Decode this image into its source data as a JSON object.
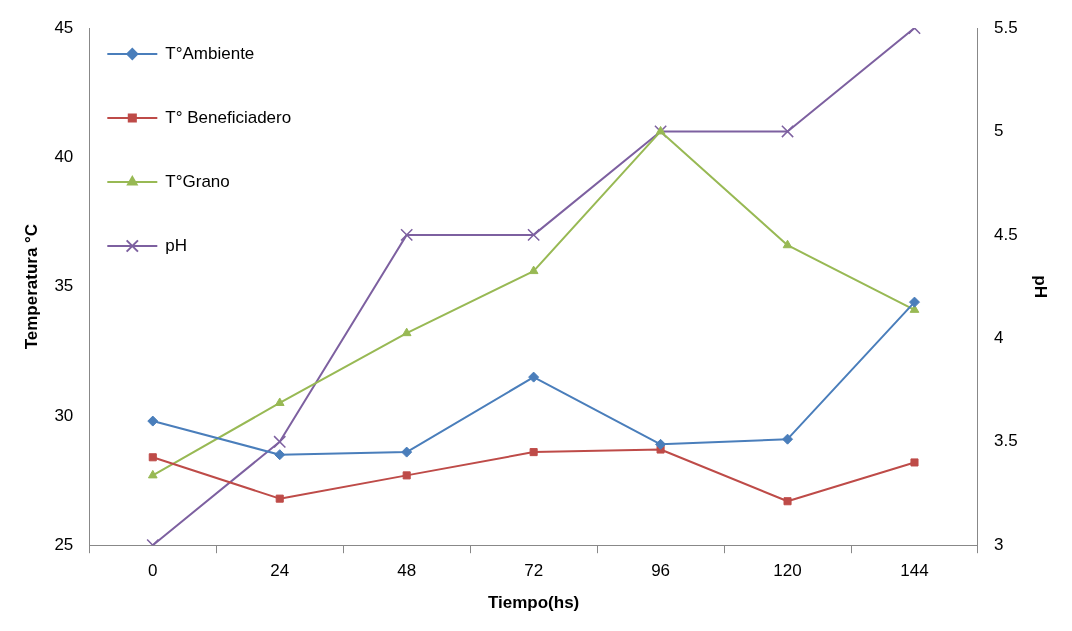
{
  "chart_data": {
    "type": "line",
    "xlabel": "Tiempo(hs)",
    "ylabel": "Temperatura °C",
    "y2label": "pH",
    "categories": [
      "0",
      "24",
      "48",
      "72",
      "96",
      "120",
      "144"
    ],
    "series": [
      {
        "name": "T°Ambiente",
        "color": "#4a7ebb",
        "marker": "diamond",
        "values": [
          29.8,
          28.5,
          28.6,
          31.5,
          28.9,
          29.1,
          34.4
        ]
      },
      {
        "name": "T° Beneficiadero",
        "color": "#be4b48",
        "marker": "square",
        "values": [
          28.4,
          26.8,
          27.7,
          28.6,
          28.7,
          26.7,
          28.2
        ]
      },
      {
        "name": "T°Grano",
        "color": "#98b954",
        "marker": "triangle",
        "values": [
          27.7,
          30.5,
          33.2,
          35.6,
          41.0,
          36.6,
          34.1
        ]
      },
      {
        "name": "pH",
        "color": "#7d60a0",
        "marker": "cross",
        "axis": "y2",
        "values": [
          3,
          3.5,
          4.5,
          4.5,
          5,
          5,
          5.5
        ]
      }
    ],
    "ylim": [
      25,
      45
    ],
    "yticks": [
      25,
      30,
      35,
      40,
      45
    ],
    "y2lim": [
      3,
      5.5
    ],
    "y2ticks": [
      3,
      3.5,
      4,
      4.5,
      5,
      5.5
    ],
    "grid": false,
    "legend": "top left"
  }
}
